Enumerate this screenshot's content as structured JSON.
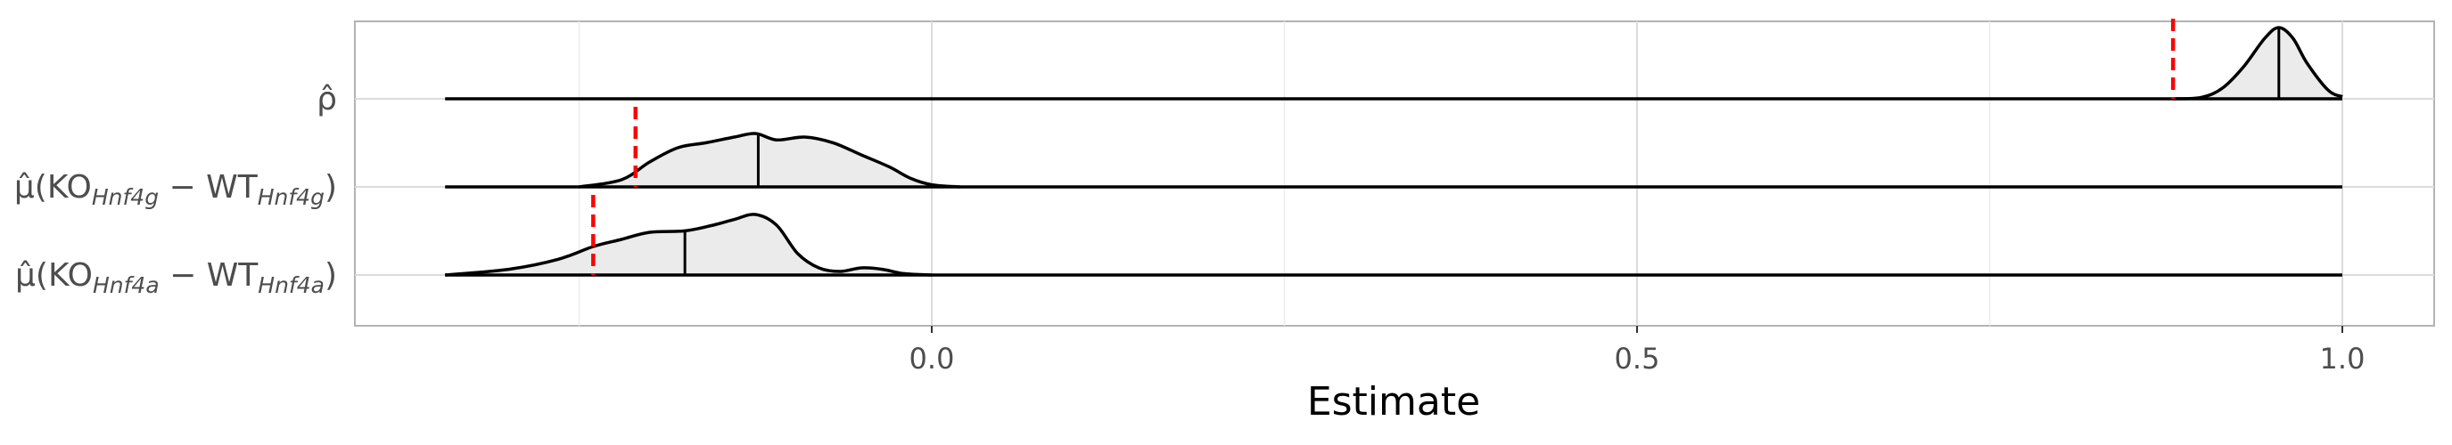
{
  "chart_data": {
    "type": "ridgeline",
    "xlabel": "Estimate",
    "xlim": [
      -0.5,
      1.13
    ],
    "x_ticks": [
      {
        "value": 0.0,
        "label": "0.0"
      },
      {
        "value": 0.5,
        "label": "0.5"
      },
      {
        "value": 1.0,
        "label": "1.0"
      }
    ],
    "x_minor_gridlines": [
      -0.25,
      0.25,
      0.75
    ],
    "grid": true,
    "colors": {
      "density_line": "#000000",
      "density_fill": "#ebebeb",
      "reference_line": "#ff0000",
      "grid": "#dcdcdc",
      "panel_border": "#b3b3b3"
    },
    "rows": [
      {
        "label": "ρ̂",
        "label_base": "ρ̂",
        "median": 0.955,
        "reference": 0.88,
        "support": [
          -0.345,
          1.0
        ],
        "density": [
          [
            0.88,
            0.0
          ],
          [
            0.9,
            0.02
          ],
          [
            0.915,
            0.15
          ],
          [
            0.93,
            0.45
          ],
          [
            0.945,
            0.85
          ],
          [
            0.955,
            1.0
          ],
          [
            0.965,
            0.85
          ],
          [
            0.975,
            0.5
          ],
          [
            0.99,
            0.12
          ],
          [
            1.0,
            0.03
          ]
        ]
      },
      {
        "label": "μ̂(KO_Hnf4g − WT_Hnf4g)",
        "label_base": "μ̂(KO",
        "label_sub1": "Hnf4g",
        "label_mid": " − WT",
        "label_sub2": "Hnf4g",
        "label_end": ")",
        "median": -0.123,
        "reference": -0.21,
        "support": [
          -0.345,
          1.0
        ],
        "density": [
          [
            -0.25,
            0.0
          ],
          [
            -0.22,
            0.1
          ],
          [
            -0.2,
            0.35
          ],
          [
            -0.18,
            0.55
          ],
          [
            -0.16,
            0.62
          ],
          [
            -0.14,
            0.7
          ],
          [
            -0.125,
            0.75
          ],
          [
            -0.11,
            0.66
          ],
          [
            -0.09,
            0.7
          ],
          [
            -0.07,
            0.62
          ],
          [
            -0.05,
            0.45
          ],
          [
            -0.03,
            0.28
          ],
          [
            -0.015,
            0.12
          ],
          [
            0.0,
            0.03
          ],
          [
            0.02,
            0.0
          ]
        ]
      },
      {
        "label": "μ̂(KO_Hnf4a − WT_Hnf4a)",
        "label_base": "μ̂(KO",
        "label_sub1": "Hnf4a",
        "label_mid": " − WT",
        "label_sub2": "Hnf4a",
        "label_end": ")",
        "median": -0.175,
        "reference": -0.24,
        "support": [
          -0.345,
          1.0
        ],
        "density": [
          [
            -0.345,
            0.0
          ],
          [
            -0.3,
            0.08
          ],
          [
            -0.265,
            0.22
          ],
          [
            -0.24,
            0.4
          ],
          [
            -0.22,
            0.5
          ],
          [
            -0.2,
            0.6
          ],
          [
            -0.175,
            0.62
          ],
          [
            -0.155,
            0.7
          ],
          [
            -0.14,
            0.78
          ],
          [
            -0.125,
            0.85
          ],
          [
            -0.11,
            0.7
          ],
          [
            -0.095,
            0.3
          ],
          [
            -0.08,
            0.1
          ],
          [
            -0.065,
            0.05
          ],
          [
            -0.05,
            0.1
          ],
          [
            -0.035,
            0.08
          ],
          [
            -0.02,
            0.02
          ],
          [
            0.0,
            0.0
          ]
        ]
      }
    ]
  }
}
